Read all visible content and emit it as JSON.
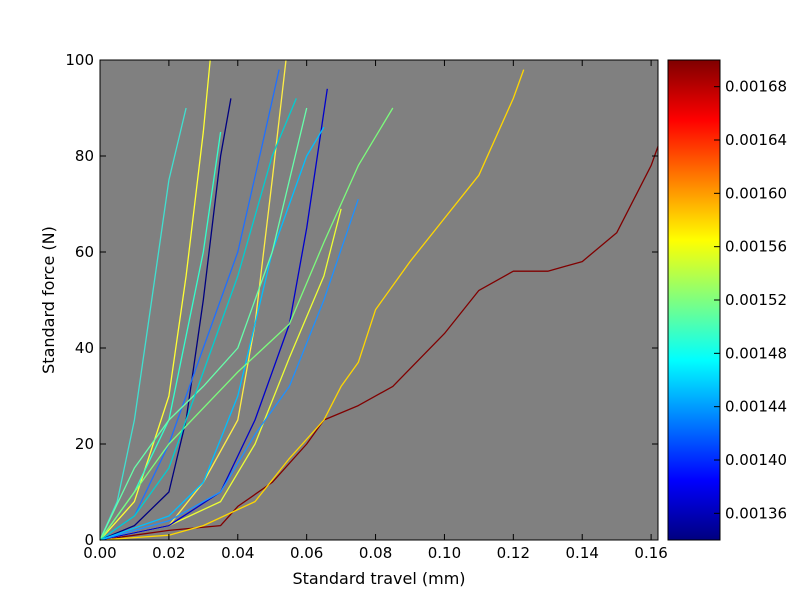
{
  "chart_data": {
    "type": "line",
    "title": "",
    "xlabel": "Standard travel (mm)",
    "ylabel": "Standard force (N)",
    "xlim": [
      0,
      0.162
    ],
    "ylim": [
      0,
      100
    ],
    "x_ticks": [
      0.0,
      0.02,
      0.04,
      0.06,
      0.08,
      0.1,
      0.12,
      0.14,
      0.16
    ],
    "x_tick_labels": [
      "0.00",
      "0.02",
      "0.04",
      "0.06",
      "0.08",
      "0.10",
      "0.12",
      "0.14",
      "0.16"
    ],
    "y_ticks": [
      0,
      20,
      40,
      60,
      80,
      100
    ],
    "y_tick_labels": [
      "0",
      "20",
      "40",
      "60",
      "80",
      "100"
    ],
    "grid": false,
    "plot_background": "#808080",
    "colorbar": {
      "colormap": "jet",
      "range": [
        0.00134,
        0.0017
      ],
      "ticks": [
        0.00136,
        0.0014,
        0.00144,
        0.00148,
        0.00152,
        0.00156,
        0.0016,
        0.00164,
        0.00168
      ],
      "tick_labels": [
        "0.00136",
        "0.00140",
        "0.00144",
        "0.00148",
        "0.00152",
        "0.00156",
        "0.00160",
        "0.00164",
        "0.00168"
      ]
    },
    "series": [
      {
        "color": "#800000",
        "x": [
          0,
          0.01,
          0.02,
          0.035,
          0.04,
          0.05,
          0.06,
          0.065,
          0.075,
          0.085,
          0.1,
          0.11,
          0.12,
          0.13,
          0.135,
          0.14,
          0.15,
          0.16,
          0.162
        ],
        "y": [
          0,
          1,
          2,
          3,
          7,
          12,
          20,
          25,
          28,
          32,
          43,
          52,
          56,
          56,
          57,
          58,
          64,
          78,
          82
        ]
      },
      {
        "color": "#ffd700",
        "x": [
          0,
          0.02,
          0.03,
          0.045,
          0.055,
          0.065,
          0.07,
          0.075,
          0.08,
          0.09,
          0.1,
          0.11,
          0.12,
          0.123
        ],
        "y": [
          0,
          1,
          3,
          8,
          17,
          25,
          32,
          37,
          48,
          58,
          67,
          76,
          92,
          98
        ]
      },
      {
        "color": "#ffff33",
        "x": [
          0,
          0.01,
          0.02,
          0.025,
          0.03,
          0.032
        ],
        "y": [
          0,
          8,
          30,
          55,
          85,
          100
        ]
      },
      {
        "color": "#ffee44",
        "x": [
          0,
          0.02,
          0.03,
          0.04,
          0.045,
          0.05,
          0.054
        ],
        "y": [
          0,
          3,
          12,
          25,
          45,
          75,
          100
        ]
      },
      {
        "color": "#eeff33",
        "x": [
          0,
          0.02,
          0.035,
          0.045,
          0.055,
          0.065,
          0.07
        ],
        "y": [
          0,
          3,
          8,
          20,
          38,
          55,
          69
        ]
      },
      {
        "color": "#000080",
        "x": [
          0,
          0.01,
          0.02,
          0.025,
          0.03,
          0.035,
          0.038
        ],
        "y": [
          0,
          3,
          10,
          25,
          50,
          80,
          92
        ]
      },
      {
        "color": "#0000cc",
        "x": [
          0,
          0.02,
          0.035,
          0.045,
          0.055,
          0.06,
          0.066
        ],
        "y": [
          0,
          3,
          10,
          25,
          45,
          65,
          94
        ]
      },
      {
        "color": "#1e6fff",
        "x": [
          0,
          0.01,
          0.02,
          0.03,
          0.04,
          0.047,
          0.052
        ],
        "y": [
          0,
          5,
          20,
          40,
          60,
          82,
          98
        ]
      },
      {
        "color": "#1e90ff",
        "x": [
          0,
          0.02,
          0.035,
          0.045,
          0.055,
          0.065,
          0.075
        ],
        "y": [
          0,
          4,
          10,
          22,
          32,
          50,
          71
        ]
      },
      {
        "color": "#00bfff",
        "x": [
          0,
          0.02,
          0.03,
          0.04,
          0.05,
          0.06,
          0.065
        ],
        "y": [
          0,
          5,
          12,
          30,
          60,
          80,
          86
        ]
      },
      {
        "color": "#40e0d0",
        "x": [
          0,
          0.005,
          0.01,
          0.015,
          0.02,
          0.025
        ],
        "y": [
          0,
          8,
          25,
          50,
          75,
          90
        ]
      },
      {
        "color": "#33ffcc",
        "x": [
          0,
          0.01,
          0.02,
          0.03,
          0.035
        ],
        "y": [
          0,
          10,
          25,
          60,
          85
        ]
      },
      {
        "color": "#66ffaa",
        "x": [
          0,
          0.01,
          0.02,
          0.03,
          0.04,
          0.05,
          0.06
        ],
        "y": [
          0,
          15,
          25,
          32,
          40,
          60,
          90
        ]
      },
      {
        "color": "#7cfc7c",
        "x": [
          0,
          0.02,
          0.04,
          0.055,
          0.065,
          0.075,
          0.085
        ],
        "y": [
          0,
          20,
          35,
          45,
          62,
          78,
          90
        ]
      },
      {
        "color": "#00ced1",
        "x": [
          0,
          0.01,
          0.02,
          0.03,
          0.04,
          0.05,
          0.057
        ],
        "y": [
          0,
          5,
          15,
          35,
          55,
          80,
          92
        ]
      }
    ]
  }
}
